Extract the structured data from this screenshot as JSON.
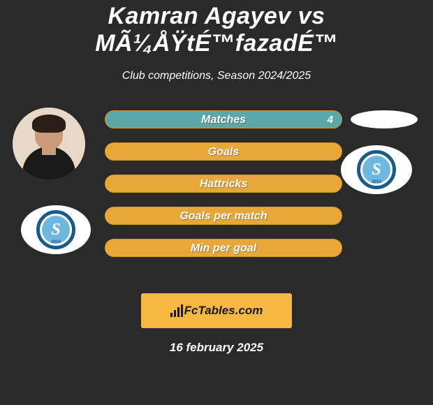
{
  "title": "Kamran Agayev vs MÃ¼ÅŸtÉ™fazadÉ™",
  "subtitle": "Club competitions, Season 2024/2025",
  "date": "16 february 2025",
  "branding": {
    "box_bg": "#f5b942",
    "text": "FcTables.com",
    "text_color": "#1a1a1a"
  },
  "background_color": "#2a2a2a",
  "player_left": {
    "name": "Kamran Agayev"
  },
  "player_right": {
    "name": "MÃ¼ÅŸtÉ™fazadÉ™"
  },
  "club_logo": {
    "outer_ring": "#1a5a8a",
    "inner_bg": "#6eb8e0",
    "letter": "S",
    "year": "2014"
  },
  "stat_colors": {
    "p1_fill": "#5aa8a8",
    "p1_border": "#5aa8a8",
    "default_bg": "#e8a838",
    "default_border": "#d89828",
    "label_color": "#ffffff"
  },
  "stats": [
    {
      "label": "Matches",
      "p1": 4,
      "p2": 4,
      "filled": true,
      "show_p2_value": true
    },
    {
      "label": "Goals",
      "p1": 0,
      "p2": 0,
      "filled": false,
      "show_p2_value": false
    },
    {
      "label": "Hattricks",
      "p1": 0,
      "p2": 0,
      "filled": false,
      "show_p2_value": false
    },
    {
      "label": "Goals per match",
      "p1": 0,
      "p2": 0,
      "filled": false,
      "show_p2_value": false
    },
    {
      "label": "Min per goal",
      "p1": 0,
      "p2": 0,
      "filled": false,
      "show_p2_value": false
    }
  ]
}
